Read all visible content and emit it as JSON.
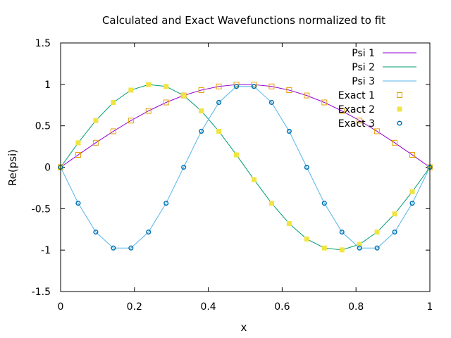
{
  "chart_data": {
    "type": "line",
    "title": "Calculated and Exact Wavefunctions normalized to fit",
    "xlabel": "x",
    "ylabel": "Re(psi)",
    "xlim": [
      0,
      1
    ],
    "ylim": [
      -1.5,
      1.5
    ],
    "x_ticks": [
      "0",
      "0.2",
      "0.4",
      "0.6",
      "0.8",
      "1"
    ],
    "y_ticks": [
      "-1.5",
      "-1",
      "-0.5",
      "0",
      "0.5",
      "1",
      "1.5"
    ],
    "grid": false,
    "legend_position": "top-right",
    "x": [
      0,
      0.0476,
      0.0952,
      0.1429,
      0.1905,
      0.2381,
      0.2857,
      0.3333,
      0.381,
      0.4286,
      0.4762,
      0.5238,
      0.5714,
      0.619,
      0.6667,
      0.7143,
      0.7619,
      0.8095,
      0.8571,
      0.9048,
      0.9524,
      1
    ],
    "series": [
      {
        "name": "Psi 1",
        "kind": "line",
        "color": "#9400d3",
        "values": [
          0,
          0.149,
          0.295,
          0.434,
          0.563,
          0.68,
          0.782,
          0.866,
          0.931,
          0.975,
          0.997,
          0.997,
          0.975,
          0.931,
          0.866,
          0.782,
          0.68,
          0.563,
          0.434,
          0.295,
          0.149,
          0
        ]
      },
      {
        "name": "Psi 2",
        "kind": "line",
        "color": "#009e73",
        "values": [
          0,
          0.295,
          0.563,
          0.782,
          0.931,
          0.997,
          0.975,
          0.866,
          0.68,
          0.434,
          0.149,
          -0.149,
          -0.434,
          -0.68,
          -0.866,
          -0.975,
          -0.997,
          -0.931,
          -0.782,
          -0.563,
          -0.295,
          0
        ]
      },
      {
        "name": "Psi 3",
        "kind": "line",
        "color": "#56b4e9",
        "values": [
          0,
          -0.434,
          -0.782,
          -0.975,
          -0.975,
          -0.782,
          -0.434,
          0,
          0.434,
          0.782,
          0.975,
          0.975,
          0.782,
          0.434,
          0,
          -0.434,
          -0.782,
          -0.975,
          -0.975,
          -0.782,
          -0.434,
          0
        ]
      },
      {
        "name": "Exact 1",
        "kind": "points",
        "marker": "open-square",
        "color": "#e69f00",
        "values": [
          0,
          0.149,
          0.295,
          0.434,
          0.563,
          0.68,
          0.782,
          0.866,
          0.931,
          0.975,
          0.997,
          0.997,
          0.975,
          0.931,
          0.866,
          0.782,
          0.68,
          0.563,
          0.434,
          0.295,
          0.149,
          0
        ]
      },
      {
        "name": "Exact 2",
        "kind": "points",
        "marker": "filled-square",
        "color": "#f0e442",
        "values": [
          0,
          0.295,
          0.563,
          0.782,
          0.931,
          0.997,
          0.975,
          0.866,
          0.68,
          0.434,
          0.149,
          -0.149,
          -0.434,
          -0.68,
          -0.866,
          -0.975,
          -0.997,
          -0.931,
          -0.782,
          -0.563,
          -0.295,
          0
        ]
      },
      {
        "name": "Exact 3",
        "kind": "points",
        "marker": "open-circle",
        "color": "#0072b2",
        "values": [
          0,
          -0.434,
          -0.782,
          -0.975,
          -0.975,
          -0.782,
          -0.434,
          0,
          0.434,
          0.782,
          0.975,
          0.975,
          0.782,
          0.434,
          0,
          -0.434,
          -0.782,
          -0.975,
          -0.975,
          -0.782,
          -0.434,
          0
        ]
      }
    ]
  }
}
